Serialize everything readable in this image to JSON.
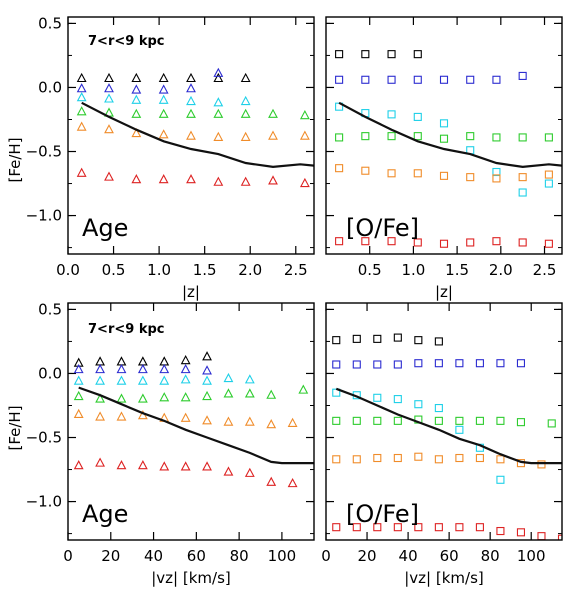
{
  "figure": {
    "ylabel": "[Fe/H]",
    "ylim": [
      -1.3,
      0.55
    ],
    "yticks": [
      0.5,
      0.0,
      -0.5,
      -1.0
    ],
    "ytick_labels": [
      "0.5",
      "0.0",
      "−0.5",
      "−1.0"
    ],
    "radial_bin": "7<r<9 kpc",
    "colors": {
      "bin_black": "#000000",
      "bin_blue": "#2b2bd0",
      "bin_cyan": "#1ed0e8",
      "bin_green": "#2ecc2e",
      "bin_orange": "#f08c2a",
      "bin_red": "#dd2222",
      "mean_line": "#111111"
    }
  },
  "chart_data": [
    {
      "id": "top-left",
      "type": "scatter",
      "label": "Age",
      "xlabel": "|z|",
      "xlim": [
        0.0,
        2.7
      ],
      "xticks": [
        0.0,
        0.5,
        1.0,
        1.5,
        2.0,
        2.5
      ],
      "xtick_labels": [
        "0.0",
        "0.5",
        "1.0",
        "1.5",
        "2.0",
        "2.5"
      ],
      "marker": "triangle",
      "series": [
        {
          "color": "bin_black",
          "x": [
            0.15,
            0.45,
            0.75,
            1.05,
            1.35,
            1.65,
            1.95
          ],
          "y": [
            0.07,
            0.07,
            0.07,
            0.07,
            0.07,
            0.07,
            0.07
          ]
        },
        {
          "color": "bin_blue",
          "x": [
            0.15,
            0.45,
            0.75,
            1.05,
            1.35,
            1.65
          ],
          "y": [
            -0.01,
            -0.01,
            -0.02,
            -0.02,
            -0.01,
            0.11
          ]
        },
        {
          "color": "bin_cyan",
          "x": [
            0.15,
            0.45,
            0.75,
            1.05,
            1.35,
            1.65,
            1.95
          ],
          "y": [
            -0.08,
            -0.09,
            -0.1,
            -0.1,
            -0.11,
            -0.12,
            -0.11
          ]
        },
        {
          "color": "bin_green",
          "x": [
            0.15,
            0.45,
            0.75,
            1.05,
            1.35,
            1.65,
            1.95,
            2.25,
            2.6
          ],
          "y": [
            -0.19,
            -0.2,
            -0.21,
            -0.21,
            -0.21,
            -0.21,
            -0.21,
            -0.21,
            -0.22
          ]
        },
        {
          "color": "bin_orange",
          "x": [
            0.15,
            0.45,
            0.75,
            1.05,
            1.35,
            1.65,
            1.95,
            2.25,
            2.6
          ],
          "y": [
            -0.31,
            -0.33,
            -0.36,
            -0.37,
            -0.38,
            -0.39,
            -0.39,
            -0.38,
            -0.38
          ]
        },
        {
          "color": "bin_red",
          "x": [
            0.15,
            0.45,
            0.75,
            1.05,
            1.35,
            1.65,
            1.95,
            2.25,
            2.6
          ],
          "y": [
            -0.67,
            -0.7,
            -0.72,
            -0.72,
            -0.72,
            -0.74,
            -0.74,
            -0.73,
            -0.75
          ]
        }
      ],
      "mean_line": {
        "x": [
          0.15,
          0.45,
          0.75,
          1.05,
          1.35,
          1.65,
          1.95,
          2.25,
          2.55,
          2.7
        ],
        "y": [
          -0.12,
          -0.23,
          -0.33,
          -0.42,
          -0.48,
          -0.52,
          -0.59,
          -0.62,
          -0.6,
          -0.61
        ]
      }
    },
    {
      "id": "top-right",
      "type": "scatter",
      "label": "[O/Fe]",
      "xlabel": "|z|",
      "xlim": [
        0.0,
        2.7
      ],
      "xticks": [
        0.5,
        1.0,
        1.5,
        2.0,
        2.5
      ],
      "xtick_labels": [
        "0.5",
        "1.0",
        "1.5",
        "2.0",
        "2.5"
      ],
      "marker": "square",
      "series": [
        {
          "color": "bin_black",
          "x": [
            0.15,
            0.45,
            0.75,
            1.05
          ],
          "y": [
            0.26,
            0.26,
            0.26,
            0.26
          ]
        },
        {
          "color": "bin_blue",
          "x": [
            0.15,
            0.45,
            0.75,
            1.05,
            1.35,
            1.65,
            1.95,
            2.25
          ],
          "y": [
            0.06,
            0.06,
            0.06,
            0.06,
            0.06,
            0.06,
            0.06,
            0.09
          ]
        },
        {
          "color": "bin_cyan",
          "x": [
            0.15,
            0.45,
            0.75,
            1.05,
            1.35,
            1.65,
            1.95,
            2.25,
            2.55
          ],
          "y": [
            -0.15,
            -0.2,
            -0.21,
            -0.23,
            -0.28,
            -0.49,
            -0.66,
            -0.82,
            -0.75
          ]
        },
        {
          "color": "bin_green",
          "x": [
            0.15,
            0.45,
            0.75,
            1.05,
            1.35,
            1.65,
            1.95,
            2.25,
            2.55
          ],
          "y": [
            -0.39,
            -0.38,
            -0.38,
            -0.38,
            -0.4,
            -0.38,
            -0.39,
            -0.39,
            -0.39
          ]
        },
        {
          "color": "bin_orange",
          "x": [
            0.15,
            0.45,
            0.75,
            1.05,
            1.35,
            1.65,
            1.95,
            2.25,
            2.55
          ],
          "y": [
            -0.63,
            -0.65,
            -0.67,
            -0.67,
            -0.69,
            -0.7,
            -0.71,
            -0.7,
            -0.68
          ]
        },
        {
          "color": "bin_red",
          "x": [
            0.15,
            0.45,
            0.75,
            1.05,
            1.35,
            1.65,
            1.95,
            2.25,
            2.55
          ],
          "y": [
            -1.2,
            -1.2,
            -1.2,
            -1.21,
            -1.22,
            -1.21,
            -1.2,
            -1.21,
            -1.22
          ]
        }
      ],
      "mean_line": {
        "x": [
          0.15,
          0.45,
          0.75,
          1.05,
          1.35,
          1.65,
          1.95,
          2.25,
          2.55,
          2.7
        ],
        "y": [
          -0.12,
          -0.23,
          -0.33,
          -0.42,
          -0.48,
          -0.52,
          -0.59,
          -0.62,
          -0.6,
          -0.61
        ]
      }
    },
    {
      "id": "bottom-left",
      "type": "scatter",
      "label": "Age",
      "xlabel": "|vz| [km/s]",
      "xlim": [
        0,
        115
      ],
      "xticks": [
        0,
        20,
        40,
        60,
        80,
        100
      ],
      "xtick_labels": [
        "0",
        "20",
        "40",
        "60",
        "80",
        "100"
      ],
      "marker": "triangle",
      "series": [
        {
          "color": "bin_black",
          "x": [
            5,
            15,
            25,
            35,
            45,
            55,
            65
          ],
          "y": [
            0.08,
            0.09,
            0.09,
            0.09,
            0.09,
            0.1,
            0.13
          ]
        },
        {
          "color": "bin_blue",
          "x": [
            5,
            15,
            25,
            35,
            45,
            55,
            65
          ],
          "y": [
            0.03,
            0.03,
            0.03,
            0.03,
            0.03,
            0.03,
            0.02
          ]
        },
        {
          "color": "bin_cyan",
          "x": [
            5,
            15,
            25,
            35,
            45,
            55,
            65,
            75,
            85
          ],
          "y": [
            -0.06,
            -0.06,
            -0.06,
            -0.06,
            -0.06,
            -0.05,
            -0.06,
            -0.04,
            -0.05
          ]
        },
        {
          "color": "bin_green",
          "x": [
            5,
            15,
            25,
            35,
            45,
            55,
            65,
            75,
            85,
            95,
            110
          ],
          "y": [
            -0.18,
            -0.2,
            -0.2,
            -0.2,
            -0.19,
            -0.19,
            -0.18,
            -0.16,
            -0.16,
            -0.17,
            -0.13
          ]
        },
        {
          "color": "bin_orange",
          "x": [
            5,
            15,
            25,
            35,
            45,
            55,
            65,
            75,
            85,
            95,
            105
          ],
          "y": [
            -0.32,
            -0.34,
            -0.34,
            -0.33,
            -0.35,
            -0.35,
            -0.37,
            -0.38,
            -0.38,
            -0.4,
            -0.39
          ]
        },
        {
          "color": "bin_red",
          "x": [
            5,
            15,
            25,
            35,
            45,
            55,
            65,
            75,
            85,
            95,
            105
          ],
          "y": [
            -0.72,
            -0.7,
            -0.72,
            -0.72,
            -0.73,
            -0.73,
            -0.73,
            -0.77,
            -0.78,
            -0.85,
            -0.86
          ]
        }
      ],
      "mean_line": {
        "x": [
          5,
          15,
          25,
          35,
          45,
          55,
          65,
          75,
          85,
          95,
          100,
          115
        ],
        "y": [
          -0.11,
          -0.17,
          -0.24,
          -0.31,
          -0.37,
          -0.44,
          -0.5,
          -0.56,
          -0.62,
          -0.69,
          -0.7,
          -0.7
        ]
      }
    },
    {
      "id": "bottom-right",
      "type": "scatter",
      "label": "[O/Fe]",
      "xlabel": "|vz| [km/s]",
      "xlim": [
        0,
        115
      ],
      "xticks": [
        0,
        20,
        40,
        60,
        80,
        100
      ],
      "xtick_labels": [
        "0",
        "20",
        "40",
        "60",
        "80",
        "100"
      ],
      "marker": "square",
      "series": [
        {
          "color": "bin_black",
          "x": [
            5,
            15,
            25,
            35,
            45,
            55
          ],
          "y": [
            0.26,
            0.27,
            0.27,
            0.28,
            0.26,
            0.25
          ]
        },
        {
          "color": "bin_blue",
          "x": [
            5,
            15,
            25,
            35,
            45,
            55,
            65,
            75,
            85,
            95
          ],
          "y": [
            0.07,
            0.07,
            0.07,
            0.07,
            0.08,
            0.08,
            0.08,
            0.08,
            0.08,
            0.08
          ]
        },
        {
          "color": "bin_cyan",
          "x": [
            5,
            15,
            25,
            35,
            45,
            55,
            65,
            75,
            85
          ],
          "y": [
            -0.15,
            -0.17,
            -0.19,
            -0.2,
            -0.24,
            -0.27,
            -0.44,
            -0.58,
            -0.83
          ]
        },
        {
          "color": "bin_green",
          "x": [
            5,
            15,
            25,
            35,
            45,
            55,
            65,
            75,
            85,
            95,
            110
          ],
          "y": [
            -0.37,
            -0.37,
            -0.37,
            -0.37,
            -0.36,
            -0.37,
            -0.37,
            -0.37,
            -0.37,
            -0.38,
            -0.39
          ]
        },
        {
          "color": "bin_orange",
          "x": [
            5,
            15,
            25,
            35,
            45,
            55,
            65,
            75,
            85,
            95,
            105
          ],
          "y": [
            -0.67,
            -0.67,
            -0.66,
            -0.66,
            -0.65,
            -0.67,
            -0.66,
            -0.66,
            -0.67,
            -0.7,
            -0.71
          ]
        },
        {
          "color": "bin_red",
          "x": [
            5,
            15,
            25,
            35,
            45,
            55,
            65,
            75,
            85,
            95,
            105,
            115
          ],
          "y": [
            -1.2,
            -1.2,
            -1.2,
            -1.2,
            -1.2,
            -1.2,
            -1.2,
            -1.2,
            -1.23,
            -1.24,
            -1.27,
            -1.29
          ]
        }
      ],
      "mean_line": {
        "x": [
          5,
          15,
          25,
          35,
          45,
          55,
          65,
          75,
          85,
          95,
          100,
          115
        ],
        "y": [
          -0.12,
          -0.18,
          -0.25,
          -0.32,
          -0.38,
          -0.44,
          -0.51,
          -0.56,
          -0.63,
          -0.69,
          -0.7,
          -0.7
        ]
      }
    }
  ]
}
